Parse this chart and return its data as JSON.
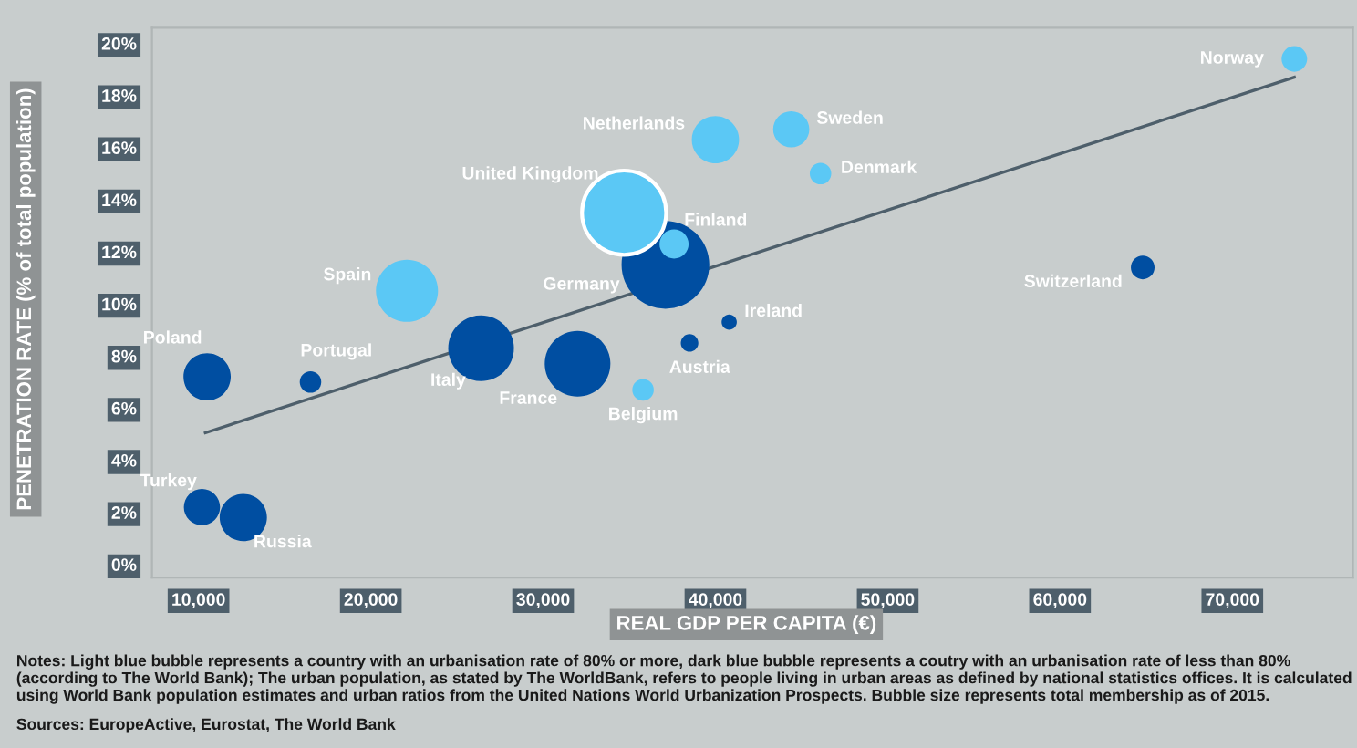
{
  "chart_data": {
    "type": "bubble",
    "xlabel": "REAL GDP PER CAPITA (€)",
    "ylabel": "PENETRATION RATE (% of total population)",
    "series": [
      {
        "color": "#5bc8f5",
        "x": [
          73600,
          40000,
          44400,
          46100,
          34700,
          37600,
          22100,
          35800
        ],
        "values": [
          19.4,
          16.3,
          16.7,
          15.0,
          13.5,
          12.3,
          10.5,
          6.7
        ],
        "sizes": [
          0.085,
          0.29,
          0.17,
          0.06,
          0.92,
          0.11,
          0.5,
          0.06
        ]
      },
      {
        "color": "#004ea1",
        "x": [
          37100,
          40800,
          38500,
          26400,
          32000,
          10500,
          16500,
          10200,
          12600,
          64800
        ],
        "values": [
          11.5,
          9.3,
          8.5,
          8.3,
          7.7,
          7.2,
          7.0,
          2.2,
          1.8,
          11.4
        ],
        "sizes": [
          1,
          0.03,
          0.04,
          0.56,
          0.56,
          0.29,
          0.06,
          0.17,
          0.29,
          0.073
        ]
      },
      {
        "type": "line",
        "color": "#4e5f6b",
        "x": [
          10400,
          73600
        ],
        "values": [
          5.05,
          18.7
        ]
      }
    ],
    "xlim": [
      7300,
      77000
    ],
    "ylim": [
      -0.5,
      20.6
    ],
    "xticks": [
      {
        "value": 10000,
        "label": "10,000"
      },
      {
        "value": 20000,
        "label": "20,000"
      },
      {
        "value": 30000,
        "label": "30,000"
      },
      {
        "value": 40000,
        "label": "40,000"
      },
      {
        "value": 50000,
        "label": "50,000"
      },
      {
        "value": 60000,
        "label": "60,000"
      },
      {
        "value": 70000,
        "label": "70,000"
      }
    ],
    "yticks": [
      {
        "value": 0,
        "label": "0%"
      },
      {
        "value": 2,
        "label": "2%"
      },
      {
        "value": 4,
        "label": "4%"
      },
      {
        "value": 6,
        "label": "6%"
      },
      {
        "value": 8,
        "label": "8%"
      },
      {
        "value": 10,
        "label": "10%"
      },
      {
        "value": 12,
        "label": "12%"
      },
      {
        "value": 14,
        "label": "14%"
      },
      {
        "value": 16,
        "label": "16%"
      },
      {
        "value": 18,
        "label": "18%"
      },
      {
        "value": 20,
        "label": "20%"
      }
    ],
    "grid": false,
    "legend": false,
    "annotations": [
      {
        "text": "Norway",
        "x": 73600,
        "y": 19.4
      },
      {
        "text": "Netherlands",
        "x": 40000,
        "y": 16.3
      },
      {
        "text": "Sweden",
        "x": 44400,
        "y": 16.7
      },
      {
        "text": "Denmark",
        "x": 46100,
        "y": 15.0
      },
      {
        "text": "United Kingdom",
        "x": 34700,
        "y": 13.5
      },
      {
        "text": "Finland",
        "x": 37600,
        "y": 12.3
      },
      {
        "text": "Spain",
        "x": 22100,
        "y": 10.5
      },
      {
        "text": "Belgium",
        "x": 35800,
        "y": 6.7
      },
      {
        "text": "Germany",
        "x": 37100,
        "y": 11.5
      },
      {
        "text": "Ireland",
        "x": 40800,
        "y": 9.3
      },
      {
        "text": "Austria",
        "x": 38500,
        "y": 8.5
      },
      {
        "text": "Italy",
        "x": 26400,
        "y": 8.3
      },
      {
        "text": "France",
        "x": 32000,
        "y": 7.7
      },
      {
        "text": "Poland",
        "x": 10500,
        "y": 7.2
      },
      {
        "text": "Portugal",
        "x": 16500,
        "y": 7.0
      },
      {
        "text": "Turkey",
        "x": 10200,
        "y": 2.2
      },
      {
        "text": "Russia",
        "x": 12600,
        "y": 1.8
      },
      {
        "text": "Switzerland",
        "x": 64800,
        "y": 11.4
      },
      "Notes: Light blue bubble represents a country with an urbanisation rate of 80% or more, dark blue bubble represents a coutry with an urbanisation rate of less than 80% (according to The World Bank); The urban population, as stated by The WorldBank, refers to people living in urban areas as defined by national statistics offices. It is calculated using World Bank population estimates and urban ratios from the United Nations World Urbanization Prospects. Bubble size represents total membership as of 2015.",
      "Sources: EuropeActive, Eurostat, The World Bank"
    ]
  }
}
